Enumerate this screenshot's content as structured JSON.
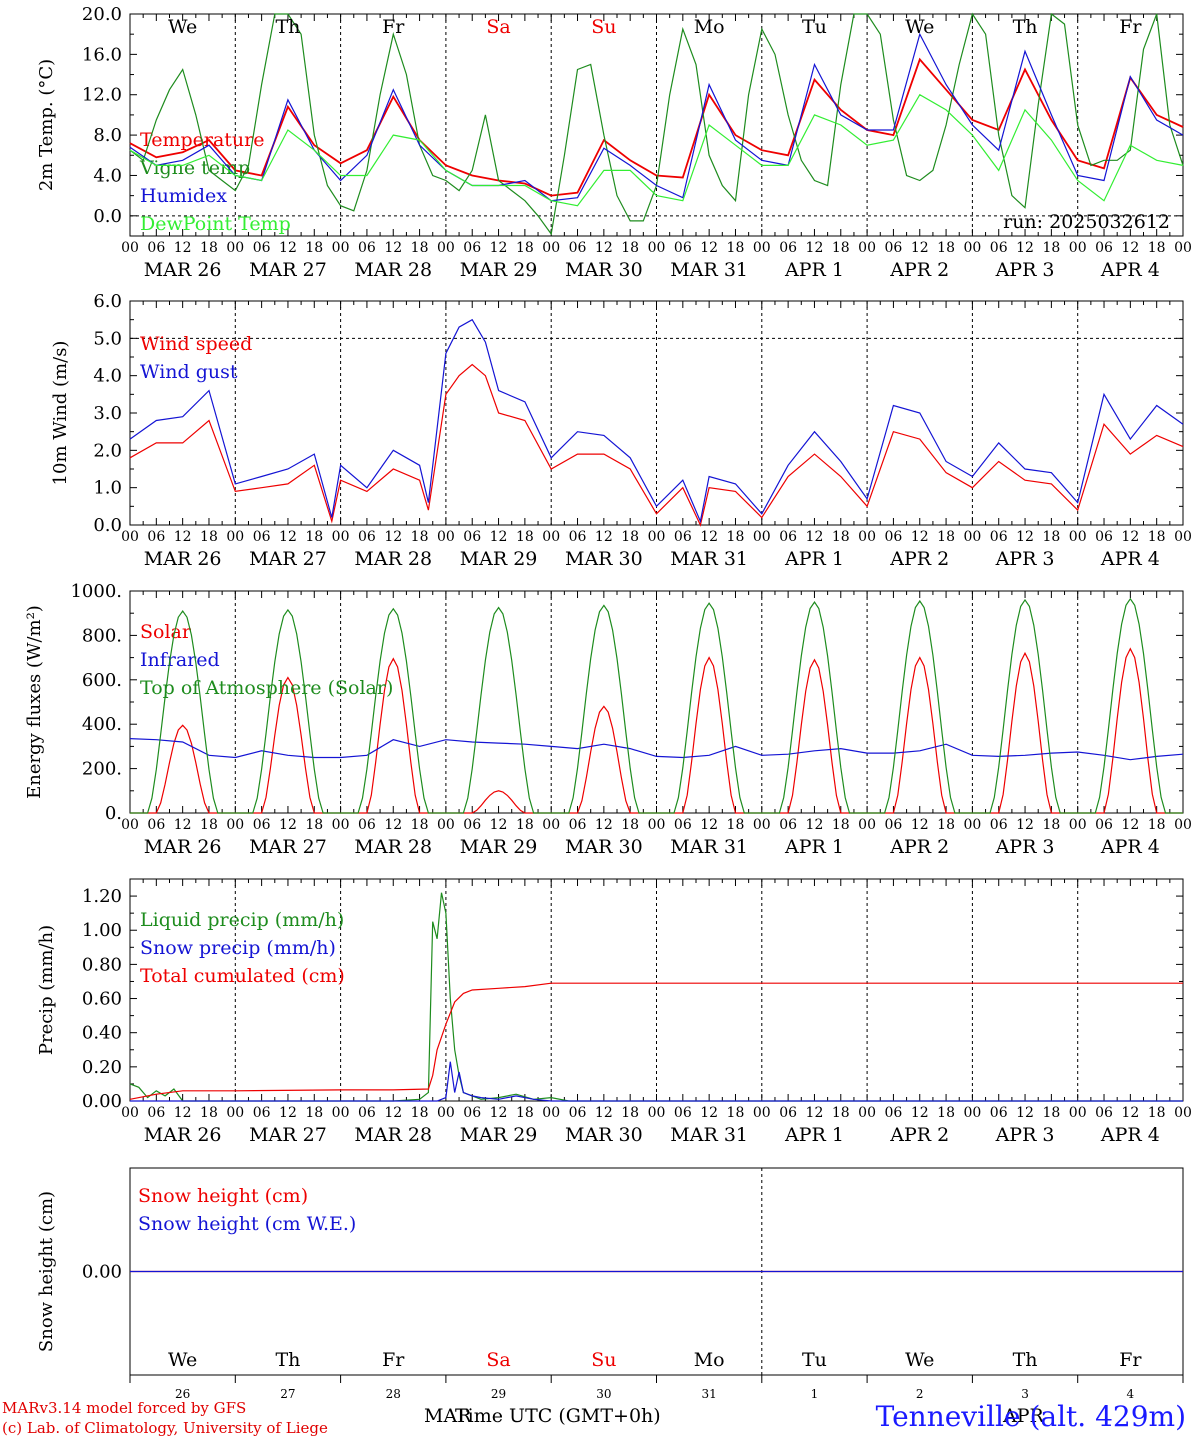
{
  "colors": {
    "red": "#ee0000",
    "green": "#1e8c1e",
    "blue": "#1414d4",
    "lightgreen": "#33ee33",
    "grid": "#000000"
  },
  "days": {
    "names": [
      "We",
      "Th",
      "Fr",
      "Sa",
      "Su",
      "Mo",
      "Tu",
      "We",
      "Th",
      "Fr"
    ],
    "name_colors": [
      "#000000",
      "#000000",
      "#000000",
      "#ee0000",
      "#ee0000",
      "#000000",
      "#000000",
      "#000000",
      "#000000",
      "#000000"
    ],
    "dates": [
      "MAR 26",
      "MAR 27",
      "MAR 28",
      "MAR 29",
      "MAR 30",
      "MAR 31",
      "APR  1",
      "APR  2",
      "APR  3",
      "APR  4"
    ],
    "day_numbers": [
      "26",
      "27",
      "28",
      "29",
      "30",
      "31",
      "1",
      "2",
      "3",
      "4"
    ],
    "hour_ticks": [
      "00",
      "06",
      "12",
      "18"
    ],
    "final_tick": "00"
  },
  "footer": {
    "model": "MARv3.14 model forced by GFS",
    "lab": "(c) Lab. of Climatology, University of Liege",
    "xaxis_title": "Time UTC (GMT+0h)",
    "month_left": "MAR",
    "month_right": "APR",
    "station": "Tenneville (alt. 429m)"
  },
  "chart_data": [
    {
      "type": "line",
      "ylabel": "2m Temp. (°C)",
      "ylim": [
        -2,
        20
      ],
      "yticks": [
        "20.0",
        "16.0",
        "12.0",
        "8.0",
        "4.0",
        "0.0"
      ],
      "ytick_values": [
        20,
        16,
        12,
        8,
        4,
        0
      ],
      "dashed_level": 0,
      "annotation": "run: 2025032612",
      "series": [
        {
          "name": "Temperature",
          "color": "red",
          "t": [
            0,
            6,
            12,
            18,
            24,
            30,
            36,
            42,
            48,
            54,
            60,
            66,
            72,
            78,
            84,
            90,
            96,
            102,
            108,
            114,
            120,
            126,
            132,
            138,
            144,
            150,
            156,
            162,
            168,
            174,
            180,
            186,
            192,
            198,
            204,
            210,
            216,
            222,
            228,
            234,
            240
          ],
          "v": [
            7.2,
            5.8,
            6.3,
            7.5,
            4.5,
            4.0,
            10.8,
            7.0,
            5.2,
            6.5,
            11.8,
            7.5,
            5.0,
            4.0,
            3.5,
            3.2,
            2.0,
            2.3,
            7.5,
            5.5,
            4.0,
            3.8,
            12.0,
            8.0,
            6.5,
            6.0,
            13.5,
            10.5,
            8.5,
            8.0,
            15.5,
            12.5,
            9.5,
            8.5,
            14.5,
            9.5,
            5.5,
            4.7,
            13.7,
            10.0,
            8.8
          ]
        },
        {
          "name": "Vigne temp",
          "color": "green",
          "t": [
            0,
            3,
            6,
            9,
            12,
            15,
            18,
            21,
            24,
            27,
            30,
            33,
            36,
            39,
            42,
            45,
            48,
            51,
            54,
            57,
            60,
            63,
            66,
            69,
            72,
            75,
            78,
            81,
            84,
            87,
            90,
            93,
            96,
            99,
            102,
            105,
            108,
            111,
            114,
            117,
            120,
            123,
            126,
            129,
            132,
            135,
            138,
            141,
            144,
            147,
            150,
            153,
            156,
            159,
            162,
            165,
            168,
            171,
            174,
            177,
            180,
            183,
            186,
            189,
            192,
            195,
            198,
            201,
            204,
            207,
            210,
            213,
            216,
            219,
            222,
            225,
            228,
            231,
            234,
            237,
            240
          ],
          "v": [
            6.5,
            5.5,
            9.5,
            12.5,
            14.5,
            10.0,
            4.5,
            3.5,
            2.5,
            5.0,
            13.0,
            20.0,
            20.0,
            18.0,
            8.0,
            3.0,
            1.0,
            0.5,
            4.5,
            12.0,
            18.0,
            14.0,
            7.0,
            4.0,
            3.5,
            2.5,
            4.5,
            10.0,
            3.5,
            2.5,
            1.5,
            0.0,
            -1.8,
            6.0,
            14.5,
            15.0,
            8.0,
            2.0,
            -0.5,
            -0.5,
            3.0,
            12.0,
            18.5,
            15.0,
            6.0,
            3.0,
            1.5,
            12.0,
            18.5,
            16.0,
            10.0,
            5.5,
            3.5,
            3.0,
            13.0,
            20.0,
            20.0,
            18.0,
            9.5,
            4.0,
            3.5,
            4.5,
            9.0,
            15.0,
            20.0,
            18.0,
            8.0,
            2.0,
            0.8,
            11.0,
            20.0,
            19.0,
            9.0,
            5.0,
            5.5,
            5.5,
            6.5,
            16.5,
            20.0,
            9.0,
            5.0
          ]
        },
        {
          "name": "Humidex",
          "color": "blue",
          "t": [
            0,
            6,
            12,
            18,
            24,
            30,
            36,
            42,
            48,
            54,
            60,
            66,
            72,
            78,
            84,
            90,
            96,
            102,
            108,
            114,
            120,
            126,
            132,
            138,
            144,
            150,
            156,
            162,
            168,
            174,
            180,
            186,
            192,
            198,
            204,
            210,
            216,
            222,
            228,
            234,
            240
          ],
          "v": [
            6.8,
            5.0,
            5.5,
            7.0,
            4.0,
            3.5,
            11.5,
            6.5,
            3.5,
            6.0,
            12.5,
            7.0,
            4.5,
            3.0,
            3.0,
            3.5,
            1.5,
            1.8,
            6.7,
            5.0,
            3.0,
            1.8,
            13.0,
            7.5,
            5.5,
            5.0,
            15.0,
            10.0,
            8.5,
            8.5,
            18.0,
            13.0,
            9.0,
            6.5,
            16.3,
            10.0,
            4.0,
            3.5,
            13.8,
            9.5,
            8.0
          ]
        },
        {
          "name": "DewPoint Temp",
          "color": "lightgreen",
          "t": [
            0,
            6,
            12,
            18,
            24,
            30,
            36,
            42,
            48,
            54,
            60,
            66,
            72,
            78,
            84,
            90,
            96,
            102,
            108,
            114,
            120,
            126,
            132,
            138,
            144,
            150,
            156,
            162,
            168,
            174,
            180,
            186,
            192,
            198,
            204,
            210,
            216,
            222,
            228,
            234,
            240
          ],
          "v": [
            6.5,
            5.0,
            5.0,
            6.0,
            4.0,
            3.5,
            8.5,
            6.5,
            4.0,
            4.0,
            8.0,
            7.5,
            4.5,
            3.0,
            3.0,
            3.0,
            1.5,
            1.0,
            4.5,
            4.5,
            2.0,
            1.5,
            9.0,
            7.0,
            5.0,
            5.0,
            10.0,
            9.0,
            7.0,
            7.5,
            12.0,
            10.5,
            8.0,
            4.5,
            10.5,
            7.5,
            3.5,
            1.5,
            7.0,
            5.5,
            5.0
          ]
        }
      ]
    },
    {
      "type": "line",
      "ylabel": "10m Wind (m/s)",
      "ylim": [
        0,
        6
      ],
      "yticks": [
        "6.0",
        "5.0",
        "4.0",
        "3.0",
        "2.0",
        "1.0",
        "0.0"
      ],
      "ytick_values": [
        6,
        5,
        4,
        3,
        2,
        1,
        0
      ],
      "dashed_level": 5,
      "series": [
        {
          "name": "Wind speed",
          "color": "red",
          "t": [
            0,
            6,
            12,
            18,
            24,
            30,
            36,
            42,
            46,
            48,
            54,
            60,
            66,
            68,
            72,
            75,
            78,
            81,
            84,
            90,
            96,
            102,
            108,
            114,
            120,
            126,
            130,
            132,
            138,
            144,
            150,
            156,
            162,
            168,
            174,
            180,
            186,
            192,
            198,
            204,
            210,
            216,
            222,
            228,
            234,
            240
          ],
          "v": [
            1.8,
            2.2,
            2.2,
            2.8,
            0.9,
            1.0,
            1.1,
            1.6,
            0.1,
            1.2,
            0.9,
            1.5,
            1.2,
            0.4,
            3.5,
            4.0,
            4.3,
            4.0,
            3.0,
            2.8,
            1.5,
            1.9,
            1.9,
            1.5,
            0.3,
            1.0,
            0.0,
            1.0,
            0.9,
            0.2,
            1.3,
            1.9,
            1.3,
            0.5,
            2.5,
            2.3,
            1.4,
            1.0,
            1.7,
            1.2,
            1.1,
            0.4,
            2.7,
            1.9,
            2.4,
            2.1
          ]
        },
        {
          "name": "Wind gust",
          "color": "blue",
          "t": [
            0,
            6,
            12,
            18,
            24,
            30,
            36,
            42,
            46,
            48,
            54,
            60,
            66,
            68,
            72,
            75,
            78,
            81,
            84,
            90,
            96,
            102,
            108,
            114,
            120,
            126,
            130,
            132,
            138,
            144,
            150,
            156,
            162,
            168,
            174,
            180,
            186,
            192,
            198,
            204,
            210,
            216,
            222,
            228,
            234,
            240
          ],
          "v": [
            2.3,
            2.8,
            2.9,
            3.6,
            1.1,
            1.3,
            1.5,
            1.9,
            0.2,
            1.6,
            1.0,
            2.0,
            1.6,
            0.6,
            4.6,
            5.3,
            5.5,
            4.9,
            3.6,
            3.3,
            1.8,
            2.5,
            2.4,
            1.8,
            0.5,
            1.2,
            0.1,
            1.3,
            1.1,
            0.3,
            1.6,
            2.5,
            1.7,
            0.7,
            3.2,
            3.0,
            1.7,
            1.3,
            2.2,
            1.5,
            1.4,
            0.6,
            3.5,
            2.3,
            3.2,
            2.7
          ]
        }
      ]
    },
    {
      "type": "line",
      "ylabel": "Energy fluxes (W/m²)",
      "ylim": [
        0,
        1000
      ],
      "yticks": [
        "1000.",
        "800.",
        "600.",
        "400.",
        "200.",
        "0."
      ],
      "ytick_values": [
        1000,
        800,
        600,
        400,
        200,
        0
      ],
      "series": [
        {
          "name": "Solar",
          "color": "red",
          "peaks": [
            395,
            610,
            695,
            100,
            480,
            700,
            690,
            700,
            720,
            740
          ]
        },
        {
          "name": "Infrared",
          "color": "blue",
          "t": [
            0,
            6,
            12,
            18,
            24,
            30,
            36,
            42,
            48,
            54,
            60,
            66,
            72,
            78,
            84,
            90,
            96,
            102,
            108,
            114,
            120,
            126,
            132,
            138,
            144,
            150,
            156,
            162,
            168,
            174,
            180,
            186,
            192,
            198,
            204,
            210,
            216,
            222,
            228,
            234,
            240
          ],
          "v": [
            335,
            330,
            320,
            260,
            250,
            280,
            260,
            250,
            250,
            260,
            330,
            300,
            330,
            320,
            315,
            310,
            300,
            290,
            310,
            290,
            255,
            250,
            260,
            300,
            260,
            265,
            280,
            290,
            270,
            270,
            280,
            310,
            260,
            255,
            260,
            270,
            275,
            260,
            240,
            255,
            265
          ]
        },
        {
          "name": "Top of Atmosphere (Solar)",
          "color": "green",
          "peaks": [
            910,
            915,
            920,
            925,
            935,
            945,
            950,
            955,
            960,
            965
          ]
        }
      ]
    },
    {
      "type": "line",
      "ylabel": "Precip (mm/h)",
      "ylim": [
        0,
        1.3
      ],
      "yticks": [
        "1.20",
        "1.00",
        "0.80",
        "0.60",
        "0.40",
        "0.20",
        "0.00"
      ],
      "ytick_values": [
        1.2,
        1.0,
        0.8,
        0.6,
        0.4,
        0.2,
        0.0
      ],
      "series": [
        {
          "name": "Liquid precip (mm/h)",
          "color": "green",
          "t": [
            0,
            2,
            4,
            6,
            8,
            10,
            12,
            20,
            60,
            66,
            68,
            69,
            70,
            71,
            72,
            73,
            74,
            75,
            76,
            78,
            80,
            84,
            88,
            92,
            96,
            100,
            240
          ],
          "v": [
            0.1,
            0.08,
            0.02,
            0.06,
            0.03,
            0.07,
            0.0,
            0.0,
            0.0,
            0.01,
            0.05,
            1.05,
            0.95,
            1.22,
            1.1,
            0.6,
            0.3,
            0.15,
            0.05,
            0.03,
            0.01,
            0.02,
            0.04,
            0.01,
            0.02,
            0.0,
            0.0
          ]
        },
        {
          "name": "Snow precip (mm/h)",
          "color": "blue",
          "t": [
            0,
            70,
            72,
            73,
            74,
            75,
            76,
            78,
            80,
            84,
            88,
            92,
            96,
            240
          ],
          "v": [
            0.0,
            0.0,
            0.02,
            0.23,
            0.05,
            0.17,
            0.05,
            0.03,
            0.02,
            0.01,
            0.03,
            0.01,
            0.0,
            0.0
          ]
        },
        {
          "name": "Total cumulated (cm)",
          "color": "red",
          "t": [
            0,
            6,
            12,
            24,
            48,
            60,
            68,
            69,
            70,
            72,
            74,
            76,
            78,
            84,
            90,
            96,
            108,
            144,
            240
          ],
          "v": [
            0.01,
            0.04,
            0.06,
            0.06,
            0.065,
            0.065,
            0.07,
            0.15,
            0.3,
            0.45,
            0.58,
            0.63,
            0.65,
            0.66,
            0.67,
            0.69,
            0.69,
            0.69,
            0.69
          ]
        }
      ]
    },
    {
      "type": "line",
      "ylabel": "Snow height (cm)",
      "yticks": [
        "0.00"
      ],
      "ytick_values": [
        0
      ],
      "series": [
        {
          "name": "Snow height (cm)",
          "color": "red",
          "t": [
            0,
            240
          ],
          "v": [
            0,
            0
          ]
        },
        {
          "name": "Snow height (cm W.E.)",
          "color": "blue",
          "t": [
            0,
            240
          ],
          "v": [
            0,
            0
          ]
        }
      ]
    }
  ]
}
